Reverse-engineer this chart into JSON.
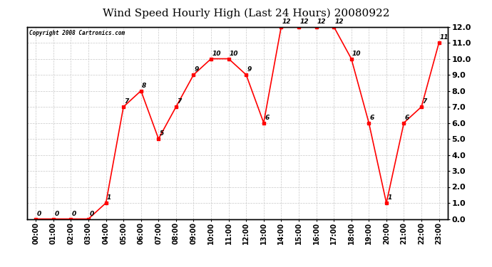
{
  "title": "Wind Speed Hourly High (Last 24 Hours) 20080922",
  "copyright": "Copyright 2008 Cartronics.com",
  "hours": [
    "00:00",
    "01:00",
    "02:00",
    "03:00",
    "04:00",
    "05:00",
    "06:00",
    "07:00",
    "08:00",
    "09:00",
    "10:00",
    "11:00",
    "12:00",
    "13:00",
    "14:00",
    "15:00",
    "16:00",
    "17:00",
    "18:00",
    "19:00",
    "20:00",
    "21:00",
    "22:00",
    "23:00"
  ],
  "values": [
    0,
    0,
    0,
    0,
    1,
    7,
    8,
    5,
    7,
    9,
    10,
    10,
    9,
    6,
    12,
    12,
    12,
    12,
    10,
    6,
    1,
    6,
    7,
    11
  ],
  "line_color": "#ff0000",
  "marker_color": "#ff0000",
  "bg_color": "#ffffff",
  "grid_color": "#c8c8c8",
  "title_fontsize": 11,
  "label_fontsize": 7,
  "annotation_fontsize": 6.5,
  "ylim": [
    0.0,
    12.0
  ],
  "yticks": [
    0.0,
    1.0,
    2.0,
    3.0,
    4.0,
    5.0,
    6.0,
    7.0,
    8.0,
    9.0,
    10.0,
    11.0,
    12.0
  ]
}
